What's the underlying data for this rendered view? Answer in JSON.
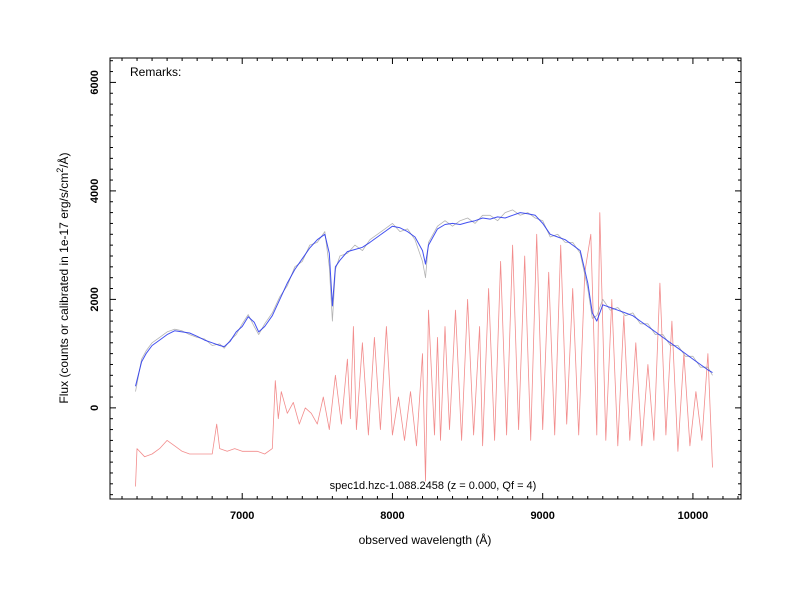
{
  "chart_data": {
    "type": "line",
    "xlabel": "observed wavelength (Å)",
    "ylabel": "Flux (counts or calibrated in 1e-17 erg/s/cm²/Å)",
    "ylabel_main": "Flux (counts or calibrated in 1e-17 erg/s/cm",
    "ylabel_sup": "2",
    "ylabel_tail": "/Å)",
    "remarks": "Remarks:",
    "caption": "spec1d.hzc-1.088.2458 (z = 0.000, Qf = 4)",
    "xlim": [
      6120,
      10320
    ],
    "ylim": [
      -1680,
      6450
    ],
    "xticks_major": [
      7000,
      8000,
      9000,
      10000
    ],
    "xtick_labels": [
      "7000",
      "8000",
      "9000",
      "10000"
    ],
    "yticks_major": [
      0,
      2000,
      4000,
      6000
    ],
    "ytick_labels": [
      "0",
      "2000",
      "4000",
      "6000"
    ],
    "colors": {
      "smoothed": "#2233ee",
      "raw": "#a0a0a0",
      "error": "#ee6666"
    },
    "smoothed_x": [
      6290,
      6330,
      6360,
      6400,
      6450,
      6500,
      6550,
      6600,
      6650,
      6700,
      6750,
      6800,
      6850,
      6880,
      6920,
      6960,
      7000,
      7040,
      7080,
      7110,
      7150,
      7200,
      7250,
      7300,
      7350,
      7400,
      7450,
      7500,
      7550,
      7580,
      7600,
      7620,
      7650,
      7700,
      7750,
      7800,
      7850,
      7900,
      7950,
      8000,
      8050,
      8100,
      8150,
      8200,
      8220,
      8240,
      8300,
      8350,
      8400,
      8450,
      8500,
      8550,
      8600,
      8650,
      8700,
      8750,
      8800,
      8850,
      8900,
      8950,
      9000,
      9050,
      9100,
      9150,
      9200,
      9250,
      9300,
      9330,
      9360,
      9400,
      9450,
      9500,
      9550,
      9600,
      9650,
      9700,
      9750,
      9800,
      9850,
      9900,
      9950,
      10000,
      10050,
      10100,
      10130
    ],
    "smoothed_y": [
      400,
      850,
      1000,
      1150,
      1250,
      1350,
      1420,
      1400,
      1380,
      1320,
      1250,
      1200,
      1150,
      1130,
      1230,
      1400,
      1500,
      1680,
      1580,
      1400,
      1500,
      1700,
      2000,
      2300,
      2550,
      2750,
      2950,
      3100,
      3200,
      2850,
      1880,
      2600,
      2720,
      2880,
      2920,
      2960,
      3050,
      3150,
      3250,
      3350,
      3320,
      3250,
      3150,
      2900,
      2650,
      3000,
      3300,
      3380,
      3400,
      3380,
      3420,
      3450,
      3500,
      3480,
      3520,
      3500,
      3550,
      3600,
      3580,
      3550,
      3400,
      3200,
      3150,
      3100,
      3000,
      2900,
      2300,
      1750,
      1600,
      1900,
      1850,
      1800,
      1750,
      1700,
      1600,
      1500,
      1400,
      1300,
      1200,
      1100,
      1000,
      900,
      800,
      700,
      650
    ],
    "raw_x": [
      6290,
      6330,
      6360,
      6400,
      6450,
      6500,
      6550,
      6600,
      6650,
      6700,
      6750,
      6800,
      6850,
      6880,
      6920,
      6960,
      7000,
      7040,
      7080,
      7110,
      7150,
      7200,
      7250,
      7300,
      7350,
      7400,
      7450,
      7500,
      7550,
      7580,
      7600,
      7620,
      7650,
      7700,
      7750,
      7800,
      7850,
      7900,
      7950,
      8000,
      8050,
      8100,
      8150,
      8200,
      8220,
      8240,
      8300,
      8350,
      8400,
      8450,
      8500,
      8550,
      8600,
      8650,
      8700,
      8750,
      8800,
      8850,
      8900,
      8950,
      9000,
      9050,
      9100,
      9150,
      9200,
      9250,
      9300,
      9330,
      9360,
      9400,
      9450,
      9500,
      9550,
      9600,
      9650,
      9700,
      9750,
      9800,
      9850,
      9900,
      9950,
      10000,
      10050,
      10100,
      10130
    ],
    "raw_y": [
      300,
      900,
      1050,
      1200,
      1300,
      1400,
      1450,
      1420,
      1350,
      1300,
      1270,
      1150,
      1180,
      1100,
      1250,
      1350,
      1550,
      1720,
      1500,
      1350,
      1550,
      1750,
      2050,
      2250,
      2600,
      2700,
      3000,
      3050,
      3250,
      2600,
      1600,
      2550,
      2800,
      2850,
      3000,
      2900,
      3100,
      3200,
      3300,
      3400,
      3250,
      3300,
      3100,
      2700,
      2400,
      3050,
      3350,
      3450,
      3350,
      3450,
      3500,
      3400,
      3550,
      3550,
      3450,
      3600,
      3650,
      3550,
      3600,
      3500,
      3450,
      3150,
      3200,
      3050,
      3050,
      2850,
      2200,
      1650,
      1700,
      2000,
      1800,
      1850,
      1700,
      1750,
      1550,
      1550,
      1350,
      1350,
      1150,
      1150,
      950,
      950,
      750,
      750,
      600
    ],
    "error_x": [
      6290,
      6300,
      6350,
      6400,
      6450,
      6500,
      6550,
      6600,
      6650,
      6700,
      6750,
      6800,
      6830,
      6850,
      6900,
      6950,
      7000,
      7050,
      7100,
      7150,
      7200,
      7220,
      7240,
      7260,
      7300,
      7340,
      7380,
      7420,
      7460,
      7500,
      7540,
      7580,
      7620,
      7660,
      7700,
      7720,
      7740,
      7760,
      7800,
      7840,
      7880,
      7920,
      7960,
      8000,
      8040,
      8080,
      8120,
      8160,
      8200,
      8220,
      8240,
      8280,
      8300,
      8320,
      8350,
      8380,
      8420,
      8460,
      8500,
      8540,
      8580,
      8600,
      8640,
      8680,
      8720,
      8760,
      8800,
      8840,
      8880,
      8920,
      8960,
      9000,
      9040,
      9080,
      9120,
      9160,
      9200,
      9240,
      9280,
      9320,
      9360,
      9380,
      9420,
      9460,
      9500,
      9540,
      9580,
      9620,
      9660,
      9700,
      9740,
      9780,
      9820,
      9860,
      9900,
      9940,
      9980,
      10020,
      10060,
      10100,
      10130
    ],
    "error_y": [
      -1450,
      -750,
      -900,
      -850,
      -750,
      -600,
      -700,
      -800,
      -850,
      -850,
      -850,
      -850,
      -300,
      -750,
      -800,
      -750,
      -800,
      -800,
      -800,
      -850,
      -750,
      500,
      -200,
      300,
      -100,
      100,
      -300,
      0,
      -100,
      -300,
      200,
      -400,
      600,
      -300,
      900,
      -200,
      1500,
      -400,
      1200,
      -500,
      1300,
      -400,
      1500,
      -500,
      200,
      -600,
      300,
      -700,
      1000,
      -1350,
      1800,
      -500,
      1300,
      -600,
      1500,
      -400,
      1800,
      -600,
      2000,
      -500,
      1500,
      -700,
      2200,
      -600,
      2700,
      -500,
      3000,
      -400,
      2800,
      -600,
      3200,
      -400,
      2500,
      -500,
      3000,
      -300,
      2200,
      -500,
      2500,
      3200,
      -500,
      3600,
      -600,
      2000,
      -700,
      1700,
      -600,
      1200,
      -700,
      800,
      -600,
      2300,
      -500,
      1600,
      -800,
      1000,
      -700,
      300,
      -600,
      1000,
      -1100
    ]
  }
}
